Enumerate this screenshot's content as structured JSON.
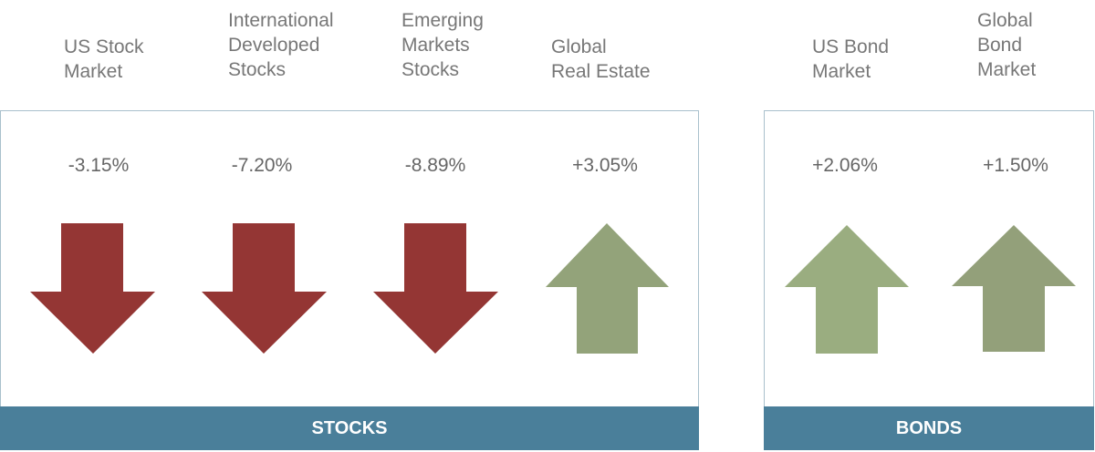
{
  "groups": [
    {
      "label": "STOCKS",
      "items": [
        {
          "label": [
            "US Stock",
            "Market"
          ],
          "value": "-3.15%"
        },
        {
          "label": [
            "International",
            "Developed",
            "Stocks"
          ],
          "value": "-7.20%"
        },
        {
          "label": [
            "Emerging",
            "Markets",
            "Stocks"
          ],
          "value": "-8.89%"
        },
        {
          "label": [
            "Global",
            "Real Estate"
          ],
          "value": "+3.05%"
        }
      ]
    },
    {
      "label": "BONDS",
      "items": [
        {
          "label": [
            "US Bond",
            "Market"
          ],
          "value": "+2.06%"
        },
        {
          "label": [
            "Global",
            "Bond",
            "Market"
          ],
          "value": "+1.50%"
        }
      ]
    }
  ]
}
